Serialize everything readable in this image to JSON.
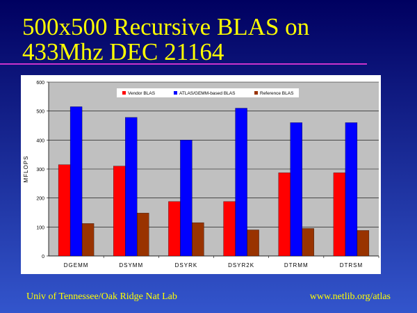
{
  "slide": {
    "title_lines": [
      "500x500 Recursive BLAS on",
      "433Mhz DEC 21164"
    ],
    "footer_left": "Univ of Tennessee/Oak Ridge Nat Lab",
    "footer_right": "www.netlib.org/atlas"
  },
  "chart_data": {
    "type": "bar",
    "y_label": "MFLOPS",
    "categories": [
      "DGEMM",
      "DSYMM",
      "DSYRK",
      "DSYR2K",
      "DTRMM",
      "DTRSM"
    ],
    "series": [
      {
        "name": "Vendor BLAS",
        "color": "#ff0000",
        "values": [
          315,
          310,
          188,
          188,
          287,
          287
        ]
      },
      {
        "name": "ATLAS/GEMM-based BLAS",
        "color": "#0000ff",
        "values": [
          515,
          478,
          400,
          510,
          460,
          460
        ]
      },
      {
        "name": "Reference BLAS",
        "color": "#993300",
        "values": [
          112,
          148,
          115,
          90,
          95,
          88
        ]
      }
    ],
    "ylim": [
      0,
      600
    ],
    "yticks": [
      0,
      100,
      200,
      300,
      400,
      500,
      600
    ],
    "grid": true,
    "legend": "top"
  }
}
